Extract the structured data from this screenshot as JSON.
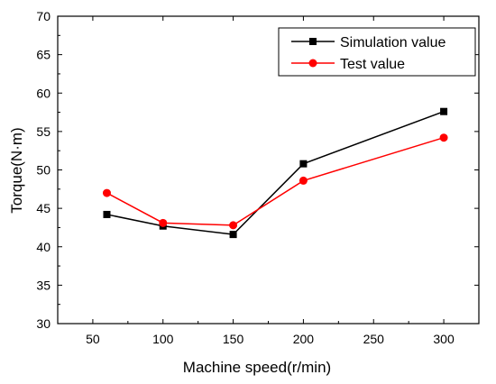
{
  "chart_data": {
    "type": "line",
    "xlabel": "Machine speed(r/min)",
    "ylabel": "Torque(N·m)",
    "xlim": [
      25,
      325
    ],
    "ylim": [
      30,
      70
    ],
    "xticks": [
      50,
      100,
      150,
      200,
      250,
      300
    ],
    "yticks": [
      30,
      35,
      40,
      45,
      50,
      55,
      60,
      65,
      70
    ],
    "grid": false,
    "legend_position": "top-right",
    "x": [
      60,
      100,
      150,
      200,
      300
    ],
    "series": [
      {
        "name": "Simulation value",
        "color": "#000000",
        "marker": "square",
        "values": [
          44.2,
          42.7,
          41.6,
          50.8,
          57.6
        ]
      },
      {
        "name": "Test value",
        "color": "#ff0000",
        "marker": "circle",
        "values": [
          47.0,
          43.1,
          42.8,
          48.6,
          54.2
        ]
      }
    ]
  }
}
